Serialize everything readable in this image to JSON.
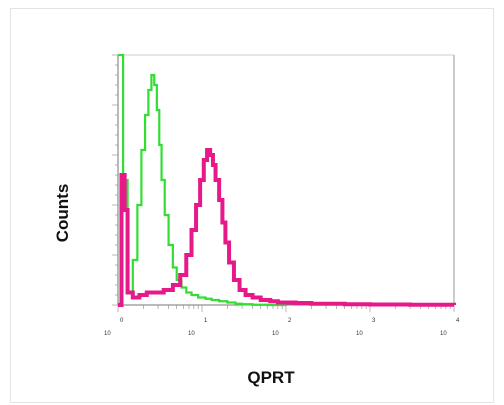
{
  "chart_data": {
    "type": "line",
    "title": "",
    "xlabel": "QPRT",
    "ylabel": "Counts",
    "x_scale": "log",
    "xlim": [
      1,
      10000
    ],
    "ylim": [
      0,
      1
    ],
    "x_ticks": [
      {
        "base": "10",
        "exp": "0"
      },
      {
        "base": "10",
        "exp": "1"
      },
      {
        "base": "10",
        "exp": "2"
      },
      {
        "base": "10",
        "exp": "3"
      },
      {
        "base": "10",
        "exp": "4"
      }
    ],
    "grid": false,
    "legend": "none",
    "series": [
      {
        "color": "#33dd33",
        "x": [
          1,
          1.15,
          1.3,
          1.5,
          1.7,
          1.9,
          2.1,
          2.3,
          2.5,
          2.7,
          2.9,
          3.1,
          3.3,
          3.6,
          4.0,
          4.5,
          5.0,
          5.7,
          6.5,
          7.5,
          9,
          11,
          13,
          16,
          20,
          25,
          30,
          40,
          60,
          100
        ],
        "y": [
          1.0,
          0.5,
          0.05,
          0.18,
          0.4,
          0.62,
          0.76,
          0.86,
          0.92,
          0.88,
          0.78,
          0.64,
          0.5,
          0.36,
          0.24,
          0.15,
          0.1,
          0.07,
          0.05,
          0.04,
          0.03,
          0.025,
          0.02,
          0.015,
          0.01,
          0.005,
          0.003,
          0.001,
          0.0,
          0.0
        ]
      },
      {
        "color": "#e6188a",
        "x": [
          1,
          1.1,
          1.2,
          1.3,
          1.5,
          1.8,
          2.2,
          2.8,
          3.5,
          4.5,
          5.5,
          6.5,
          7.5,
          8.5,
          9.5,
          10.5,
          11.5,
          12.5,
          13.5,
          14.5,
          16,
          17.5,
          19,
          21,
          24,
          28,
          33,
          40,
          50,
          65,
          80,
          100,
          130,
          200,
          500,
          1000,
          3000,
          10000
        ],
        "y": [
          0.0,
          0.52,
          0.38,
          0.05,
          0.03,
          0.04,
          0.05,
          0.05,
          0.06,
          0.08,
          0.12,
          0.2,
          0.3,
          0.4,
          0.5,
          0.58,
          0.62,
          0.6,
          0.56,
          0.5,
          0.42,
          0.33,
          0.25,
          0.17,
          0.1,
          0.06,
          0.04,
          0.03,
          0.02,
          0.015,
          0.01,
          0.01,
          0.008,
          0.005,
          0.003,
          0.002,
          0.001,
          0.0
        ]
      }
    ]
  }
}
